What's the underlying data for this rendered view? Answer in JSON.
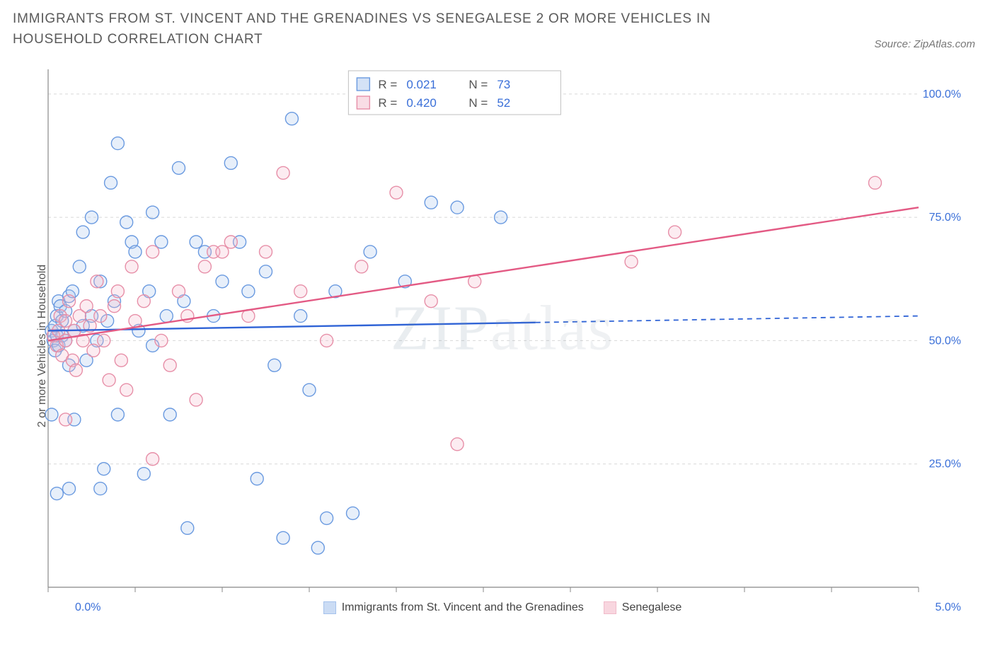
{
  "title": "IMMIGRANTS FROM ST. VINCENT AND THE GRENADINES VS SENEGALESE 2 OR MORE VEHICLES IN HOUSEHOLD CORRELATION CHART",
  "source": "Source: ZipAtlas.com",
  "watermark_a": "ZIP",
  "watermark_b": "atlas",
  "chart": {
    "type": "scatter",
    "ylabel": "2 or more Vehicles in Household",
    "xlim": [
      0.0,
      5.0
    ],
    "ylim": [
      0.0,
      105.0
    ],
    "x_tick_positions": [
      0.0,
      0.5,
      1.0,
      1.5,
      2.0,
      2.5,
      3.0,
      3.5,
      4.0,
      4.5,
      5.0
    ],
    "x_tick_labels_shown": {
      "0.0": "0.0%",
      "5.0": "5.0%"
    },
    "y_gridlines": [
      25.0,
      50.0,
      75.0,
      100.0
    ],
    "y_tick_labels": {
      "25.0": "25.0%",
      "50.0": "50.0%",
      "75.0": "75.0%",
      "100.0": "100.0%"
    },
    "background_color": "#ffffff",
    "grid_color": "#d8d8d8",
    "grid_dash": "4,4",
    "axis_color": "#888888",
    "tick_label_color": "#3a6fd8",
    "axis_label_color": "#555555",
    "axis_label_fontsize": 16,
    "tick_fontsize": 16,
    "marker_radius": 9,
    "marker_stroke_width": 1.4,
    "marker_fill_opacity": 0.28,
    "trend_line_width": 2.4,
    "series": [
      {
        "name": "Immigrants from St. Vincent and the Grenadines",
        "color_stroke": "#6a9ae0",
        "color_fill": "#a9c6ee",
        "trend_color": "#2f63d6",
        "trend_dash_after_x": 2.8,
        "R": "0.021",
        "N": "73",
        "trend": {
          "x1": 0.0,
          "y1": 52.0,
          "x2": 5.0,
          "y2": 55.0
        },
        "points": [
          [
            0.02,
            52
          ],
          [
            0.03,
            50
          ],
          [
            0.04,
            53
          ],
          [
            0.04,
            48
          ],
          [
            0.05,
            55
          ],
          [
            0.05,
            51
          ],
          [
            0.06,
            49
          ],
          [
            0.06,
            58
          ],
          [
            0.07,
            57
          ],
          [
            0.08,
            54
          ],
          [
            0.08,
            51
          ],
          [
            0.1,
            50
          ],
          [
            0.1,
            56
          ],
          [
            0.12,
            59
          ],
          [
            0.12,
            45
          ],
          [
            0.14,
            60
          ],
          [
            0.15,
            52
          ],
          [
            0.15,
            34
          ],
          [
            0.02,
            35
          ],
          [
            0.18,
            65
          ],
          [
            0.2,
            72
          ],
          [
            0.2,
            53
          ],
          [
            0.22,
            46
          ],
          [
            0.25,
            55
          ],
          [
            0.25,
            75
          ],
          [
            0.28,
            50
          ],
          [
            0.3,
            20
          ],
          [
            0.3,
            62
          ],
          [
            0.32,
            24
          ],
          [
            0.34,
            54
          ],
          [
            0.36,
            82
          ],
          [
            0.38,
            58
          ],
          [
            0.4,
            90
          ],
          [
            0.4,
            35
          ],
          [
            0.45,
            74
          ],
          [
            0.48,
            70
          ],
          [
            0.5,
            68
          ],
          [
            0.52,
            52
          ],
          [
            0.55,
            23
          ],
          [
            0.58,
            60
          ],
          [
            0.6,
            49
          ],
          [
            0.6,
            76
          ],
          [
            0.65,
            70
          ],
          [
            0.68,
            55
          ],
          [
            0.7,
            35
          ],
          [
            0.75,
            85
          ],
          [
            0.78,
            58
          ],
          [
            0.8,
            12
          ],
          [
            0.85,
            70
          ],
          [
            0.9,
            68
          ],
          [
            0.95,
            55
          ],
          [
            1.0,
            62
          ],
          [
            1.05,
            86
          ],
          [
            1.1,
            70
          ],
          [
            1.15,
            60
          ],
          [
            1.2,
            22
          ],
          [
            1.25,
            64
          ],
          [
            1.3,
            45
          ],
          [
            1.35,
            10
          ],
          [
            1.4,
            95
          ],
          [
            1.45,
            55
          ],
          [
            1.5,
            40
          ],
          [
            1.55,
            8
          ],
          [
            1.6,
            14
          ],
          [
            1.65,
            60
          ],
          [
            1.75,
            15
          ],
          [
            1.85,
            68
          ],
          [
            2.05,
            62
          ],
          [
            2.2,
            78
          ],
          [
            2.35,
            77
          ],
          [
            2.6,
            75
          ],
          [
            0.12,
            20
          ],
          [
            0.05,
            19
          ]
        ]
      },
      {
        "name": "Senegalese",
        "color_stroke": "#e78fa8",
        "color_fill": "#f4bccb",
        "trend_color": "#e35a84",
        "trend_dash_after_x": 5.0,
        "R": "0.420",
        "N": "52",
        "trend": {
          "x1": 0.0,
          "y1": 50.0,
          "x2": 5.0,
          "y2": 77.0
        },
        "points": [
          [
            0.03,
            51
          ],
          [
            0.05,
            49
          ],
          [
            0.06,
            52
          ],
          [
            0.07,
            55
          ],
          [
            0.08,
            47
          ],
          [
            0.1,
            50
          ],
          [
            0.1,
            54
          ],
          [
            0.12,
            58
          ],
          [
            0.14,
            46
          ],
          [
            0.15,
            52
          ],
          [
            0.16,
            44
          ],
          [
            0.18,
            55
          ],
          [
            0.2,
            50
          ],
          [
            0.22,
            57
          ],
          [
            0.24,
            53
          ],
          [
            0.1,
            34
          ],
          [
            0.26,
            48
          ],
          [
            0.28,
            62
          ],
          [
            0.3,
            55
          ],
          [
            0.32,
            50
          ],
          [
            0.35,
            42
          ],
          [
            0.38,
            57
          ],
          [
            0.4,
            60
          ],
          [
            0.42,
            46
          ],
          [
            0.45,
            40
          ],
          [
            0.48,
            65
          ],
          [
            0.5,
            54
          ],
          [
            0.55,
            58
          ],
          [
            0.6,
            68
          ],
          [
            0.65,
            50
          ],
          [
            0.6,
            26
          ],
          [
            0.7,
            45
          ],
          [
            0.75,
            60
          ],
          [
            0.8,
            55
          ],
          [
            0.85,
            38
          ],
          [
            0.9,
            65
          ],
          [
            0.95,
            68
          ],
          [
            1.05,
            70
          ],
          [
            1.15,
            55
          ],
          [
            1.25,
            68
          ],
          [
            1.35,
            84
          ],
          [
            1.45,
            60
          ],
          [
            1.6,
            50
          ],
          [
            1.8,
            65
          ],
          [
            2.0,
            80
          ],
          [
            2.2,
            58
          ],
          [
            2.35,
            29
          ],
          [
            2.45,
            62
          ],
          [
            3.35,
            66
          ],
          [
            3.6,
            72
          ],
          [
            4.75,
            82
          ],
          [
            1.0,
            68
          ]
        ]
      }
    ],
    "stats_box": {
      "border_color": "#bfbfbf",
      "bg_color": "#ffffff",
      "text_color_label": "#555555",
      "text_color_value": "#3a6fd8",
      "fontsize": 17,
      "labels": {
        "R": "R =",
        "N": "N ="
      }
    },
    "bottom_legend": {
      "fontsize": 16,
      "text_color": "#444444"
    }
  }
}
